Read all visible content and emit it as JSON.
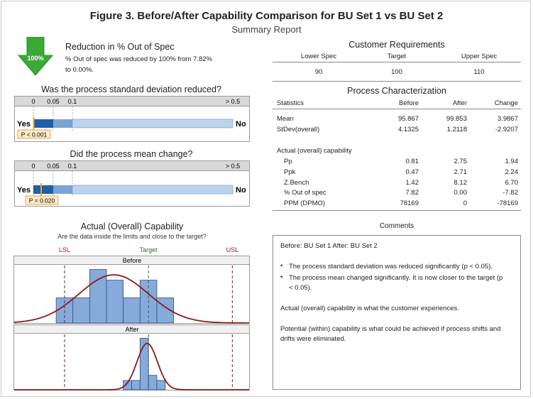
{
  "header": {
    "title": "Figure 3.  Before/After Capability Comparison for BU Set 1 vs BU Set 2",
    "subtitle": "Summary Report"
  },
  "reduction": {
    "arrow_label": "100%",
    "heading": "Reduction in % Out of Spec",
    "text_line1": "% Out of spec was reduced by 100% from 7.82%",
    "text_line2": "to 0.00%.",
    "arrow_color": "#3aa935"
  },
  "stdev_test": {
    "question": "Was the process standard deviation reduced?",
    "ticks": [
      "0",
      "0.05",
      "0.1",
      "> 0.5"
    ],
    "yes_label": "Yes",
    "no_label": "No",
    "p_label": "P < 0.001"
  },
  "mean_test": {
    "question": "Did the process mean change?",
    "ticks": [
      "0",
      "0.05",
      "0.1",
      "> 0.5"
    ],
    "yes_label": "Yes",
    "no_label": "No",
    "p_label": "P = 0.020"
  },
  "customer_requirements": {
    "heading": "Customer Requirements",
    "headers": [
      "Lower Spec",
      "Target",
      "Upper Spec"
    ],
    "values": [
      "90",
      "100",
      "110"
    ]
  },
  "process_characterization": {
    "heading": "Process Characterization",
    "col_headers": [
      "Statistics",
      "Before",
      "After",
      "Change"
    ],
    "rows": [
      {
        "label": "Mean",
        "before": "95.867",
        "after": "99.853",
        "change": "3.9867"
      },
      {
        "label": "StDev(overall)",
        "before": "4.1325",
        "after": "1.2118",
        "change": "-2.9207"
      }
    ],
    "capability_heading": "Actual (overall) capability",
    "cap_rows": [
      {
        "label": "Pp",
        "before": "0.81",
        "after": "2.75",
        "change": "1.94"
      },
      {
        "label": "Ppk",
        "before": "0.47",
        "after": "2.71",
        "change": "2.24"
      },
      {
        "label": "Z.Bench",
        "before": "1.42",
        "after": "8.12",
        "change": "6.70"
      },
      {
        "label": "% Out of spec",
        "before": "7.82",
        "after": "0.00",
        "change": "-7.82"
      },
      {
        "label": "PPM (DPMO)",
        "before": "78169",
        "after": "0",
        "change": "-78169"
      }
    ]
  },
  "capability_chart": {
    "heading": "Actual (Overall) Capability",
    "subheading": "Are the data inside the limits and close to the target?",
    "lsl_label": "LSL",
    "target_label": "Target",
    "usl_label": "USL",
    "panel_before": "Before",
    "panel_after": "After"
  },
  "comments": {
    "heading": "Comments",
    "line1": "Before: BU Set 1     After: BU Set 2",
    "bullet1": "The process standard deviation was reduced significantly (p < 0.05).",
    "bullet2_line1": "The process mean changed significantly. It is now closer to the target (p",
    "bullet2_line2": "< 0.05).",
    "para1": "Actual (overall) capability is what the customer experiences.",
    "para2_line1": "Potential (within) capability is what could be achieved if process shifts and",
    "para2_line2": "drifts were eliminated."
  },
  "chart_data": [
    {
      "type": "bar",
      "title": "Was the process standard deviation reduced?",
      "x_ticks": [
        "0",
        "0.05",
        "0.1",
        "> 0.5"
      ],
      "p_value": "< 0.001",
      "result": "Yes"
    },
    {
      "type": "bar",
      "title": "Did the process mean change?",
      "x_ticks": [
        "0",
        "0.05",
        "0.1",
        "> 0.5"
      ],
      "p_value": 0.02,
      "result": "Yes"
    },
    {
      "type": "bar",
      "title": "Actual (Overall) Capability",
      "spec_limits": {
        "LSL": 90,
        "Target": 100,
        "USL": 110
      },
      "xlim": [
        84,
        112
      ],
      "series": [
        {
          "name": "Before",
          "bin_edges": [
            89,
            91,
            93,
            95,
            97,
            99,
            101,
            103
          ],
          "relative_heights": [
            0.47,
            0.47,
            1.0,
            0.8,
            0.47,
            0.8,
            0.47
          ],
          "normal_fit": {
            "mean": 95.867,
            "stdev": 4.1325
          }
        },
        {
          "name": "After",
          "bin_edges": [
            97,
            98,
            99,
            100,
            101,
            102
          ],
          "relative_heights": [
            0.18,
            0.18,
            1.0,
            0.28,
            0.18
          ],
          "normal_fit": {
            "mean": 99.853,
            "stdev": 1.2118
          }
        }
      ]
    }
  ]
}
